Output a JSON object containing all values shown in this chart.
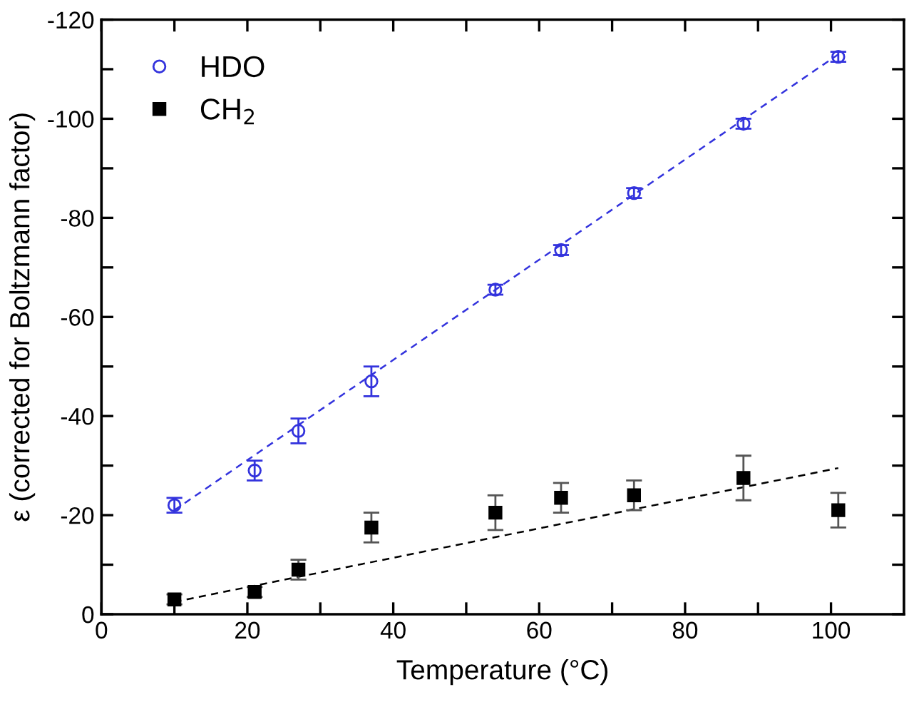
{
  "chart_data": {
    "type": "scatter",
    "xlabel": "Temperature (°C)",
    "ylabel": "ε (corrected for Boltzmann factor)",
    "xlim": [
      0,
      110
    ],
    "ylim": [
      0,
      -120
    ],
    "xticks": [
      0,
      {
        "value": 10,
        "label": null
      },
      20,
      {
        "value": 30,
        "label": null
      },
      40,
      {
        "value": 50,
        "label": null
      },
      60,
      {
        "value": 70,
        "label": null
      },
      80,
      {
        "value": 90,
        "label": null
      },
      100
    ],
    "yticks": [
      0,
      {
        "value": -10,
        "label": null
      },
      -20,
      {
        "value": -30,
        "label": null
      },
      -40,
      {
        "value": -50,
        "label": null
      },
      -60,
      {
        "value": -70,
        "label": null
      },
      -80,
      {
        "value": -90,
        "label": null
      },
      -100,
      {
        "value": -110,
        "label": null
      },
      -120
    ],
    "legend": "top left",
    "grid": false,
    "series": [
      {
        "name": "HDO",
        "marker": "circle",
        "color": "#3333dd",
        "x": [
          10,
          21,
          27,
          37,
          54,
          63,
          73,
          88,
          101
        ],
        "values": [
          -22,
          -29,
          -37,
          -47,
          -65.5,
          -73.5,
          -85,
          -99,
          -112.5
        ],
        "errors": [
          1.5,
          2,
          2.5,
          3,
          1,
          1,
          1,
          1,
          1
        ]
      },
      {
        "name": "CH$_{2}$",
        "marker": "square",
        "color": "#000000",
        "x": [
          10,
          21,
          27,
          37,
          54,
          63,
          73,
          88,
          101
        ],
        "values": [
          -3,
          -4.5,
          -9,
          -17.5,
          -20.5,
          -23.5,
          -24,
          -27.5,
          -21
        ],
        "errors": [
          1,
          1,
          2,
          3,
          3.5,
          3,
          3,
          4.5,
          3.5
        ]
      },
      {
        "type": "line",
        "line_style": "dashed",
        "color": "#3333dd",
        "x": [
          10,
          101
        ],
        "values": [
          -21,
          -113
        ]
      },
      {
        "type": "line",
        "line_style": "dashed",
        "color": "#000000",
        "x": [
          10,
          101
        ],
        "values": [
          -2.5,
          -29.5
        ]
      }
    ]
  }
}
